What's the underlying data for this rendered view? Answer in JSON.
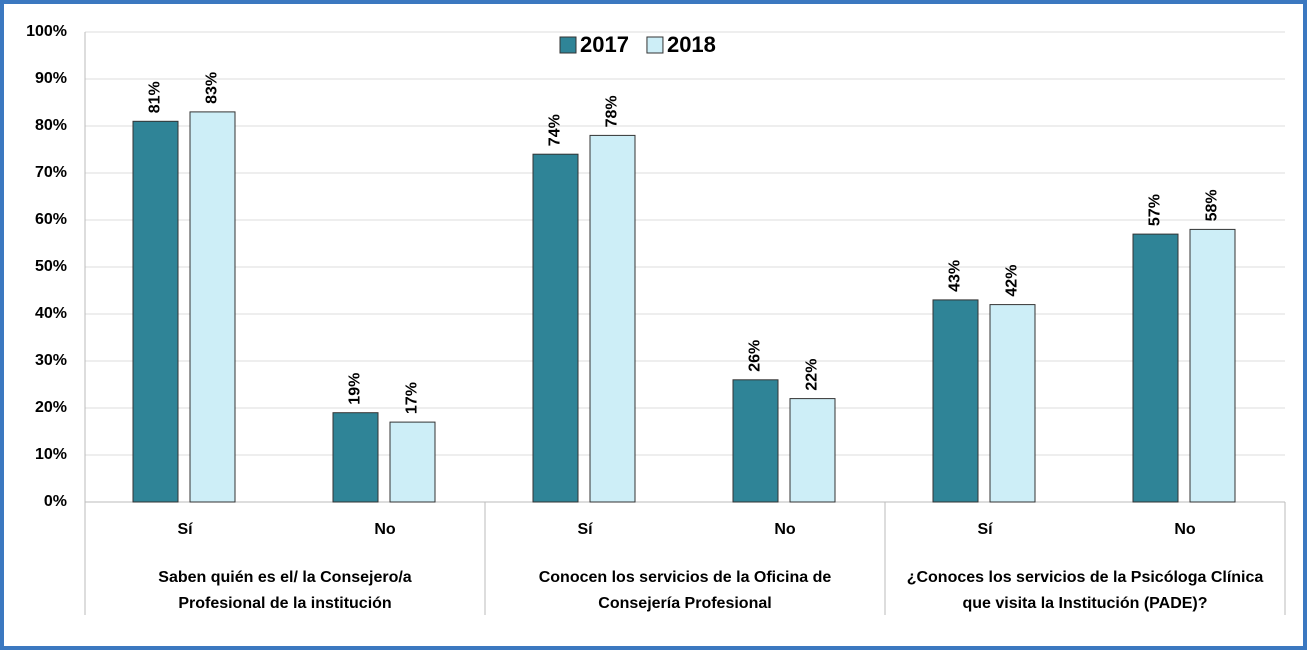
{
  "chart_data": {
    "type": "bar",
    "categories": [
      "Sí",
      "No",
      "Sí",
      "No",
      "Sí",
      "No"
    ],
    "groups": [
      [
        "Saben quién es el/ la Consejero/a",
        "Profesional de la institución"
      ],
      [
        "Conocen los servicios de la Oficina de",
        "Consejería Profesional"
      ],
      [
        "¿Conoces los servicios de la Psicóloga Clínica",
        "que visita la Institución (PADE)?"
      ]
    ],
    "series": [
      {
        "name": "2017",
        "color": "#2f8497",
        "values": [
          81,
          19,
          74,
          26,
          43,
          57
        ],
        "value_labels": [
          "81%",
          "19%",
          "74%",
          "26%",
          "43%",
          "57%"
        ]
      },
      {
        "name": "2018",
        "color": "#cdeef7",
        "values": [
          83,
          17,
          78,
          22,
          42,
          58
        ],
        "value_labels": [
          "83%",
          "17%",
          "78%",
          "22%",
          "42%",
          "58%"
        ]
      }
    ],
    "ylim": [
      0,
      100
    ],
    "yticks": [
      {
        "value": 0,
        "label": "0%"
      },
      {
        "value": 10,
        "label": "10%"
      },
      {
        "value": 20,
        "label": "20%"
      },
      {
        "value": 30,
        "label": "30%"
      },
      {
        "value": 40,
        "label": "40%"
      },
      {
        "value": 50,
        "label": "50%"
      },
      {
        "value": 60,
        "label": "60%"
      },
      {
        "value": 70,
        "label": "70%"
      },
      {
        "value": 80,
        "label": "80%"
      },
      {
        "value": 90,
        "label": "90%"
      },
      {
        "value": 100,
        "label": "100%"
      }
    ],
    "grid": true,
    "legend": "top"
  }
}
